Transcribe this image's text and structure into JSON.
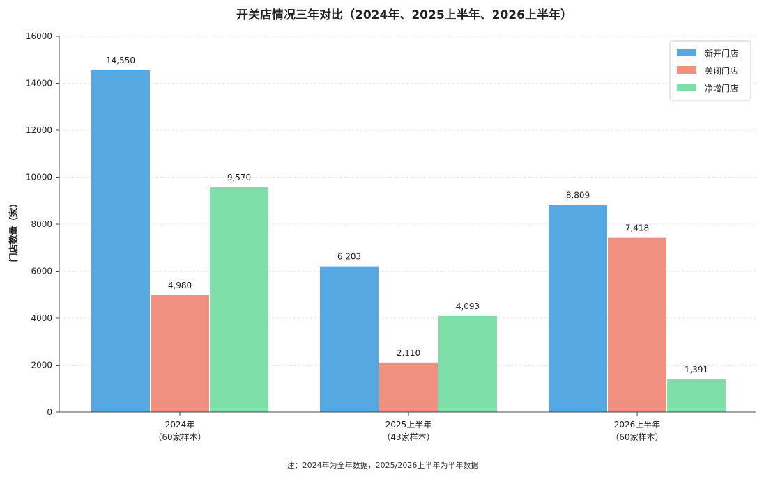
{
  "chart_data": {
    "type": "bar",
    "title": "开关店情况三年对比（2024年、2025上半年、2026上半年）",
    "ylabel": "门店数量（家）",
    "xlabel": "",
    "categories": [
      {
        "line1": "2024年",
        "line2": "（60家样本）"
      },
      {
        "line1": "2025上半年",
        "line2": "（43家样本）"
      },
      {
        "line1": "2026上半年",
        "line2": "（60家样本）"
      }
    ],
    "series": [
      {
        "name": "新开门店",
        "color": "#56a8e3",
        "values": [
          14550,
          6203,
          8809
        ],
        "labels": [
          "14,550",
          "6,203",
          "8,809"
        ]
      },
      {
        "name": "关闭门店",
        "color": "#ef9080",
        "values": [
          4980,
          2110,
          7418
        ],
        "labels": [
          "4,980",
          "2,110",
          "7,418"
        ]
      },
      {
        "name": "净增门店",
        "color": "#7edfa9",
        "values": [
          9570,
          4093,
          1391
        ],
        "labels": [
          "9,570",
          "4,093",
          "1,391"
        ]
      }
    ],
    "ylim": [
      0,
      16000
    ],
    "yticks": [
      0,
      2000,
      4000,
      6000,
      8000,
      10000,
      12000,
      14000,
      16000
    ],
    "grid": true,
    "legend_position": "top-right",
    "note": "注：2024年为全年数据，2025/2026上半年为半年数据"
  }
}
